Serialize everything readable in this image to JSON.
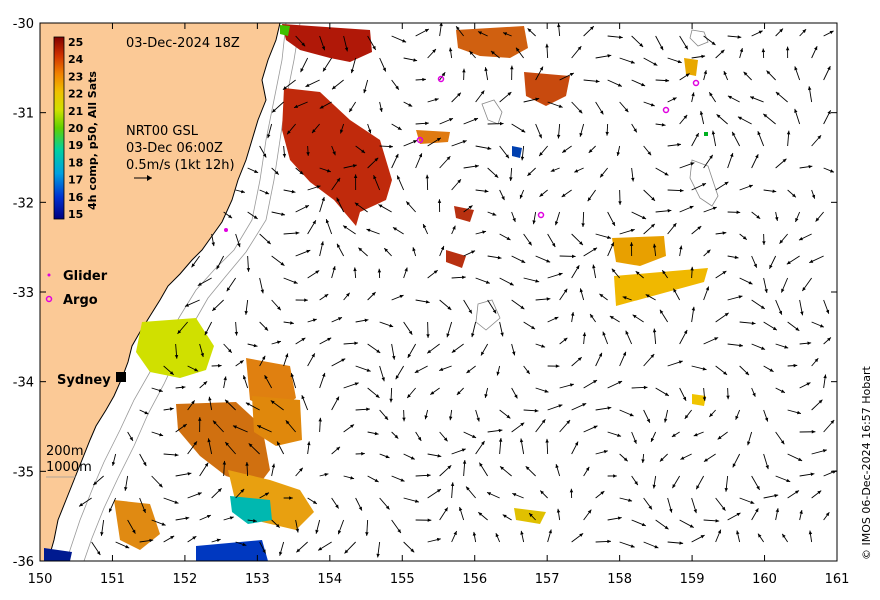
{
  "map": {
    "date_label": "03-Dec-2024 18Z",
    "current_product": "NRT00 GSL",
    "current_time": "03-Dec 06:00Z",
    "current_scale": "0.5m/s (1kt 12h)",
    "credit": "© IMOS 06-Dec-2024 16:57 Hobart",
    "colorbar": {
      "label": "4h comp, p50, All Sats",
      "ticks": [
        "25",
        "24",
        "23",
        "22",
        "21",
        "20",
        "19",
        "18",
        "17",
        "16",
        "15"
      ]
    },
    "legend": {
      "glider": "Glider",
      "argo": "Argo"
    },
    "city": "Sydney",
    "isobaths": [
      "200m",
      "1000m"
    ],
    "x_axis": {
      "range": [
        150,
        161
      ],
      "ticks": [
        "150",
        "151",
        "152",
        "153",
        "154",
        "155",
        "156",
        "157",
        "158",
        "159",
        "160",
        "161"
      ]
    },
    "y_axis": {
      "range": [
        -36,
        -30
      ],
      "ticks": [
        "-30",
        "-31",
        "-32",
        "-33",
        "-34",
        "-35",
        "-36"
      ]
    },
    "colors": {
      "land": "#fbc996",
      "argo": "#e000e0",
      "glider": "#e000e0",
      "warm": "#c0140a",
      "orange": "#e07a10",
      "yellow": "#f0c800",
      "green": "#80d000",
      "cyan": "#00c0c0",
      "blue": "#0030b0"
    }
  }
}
